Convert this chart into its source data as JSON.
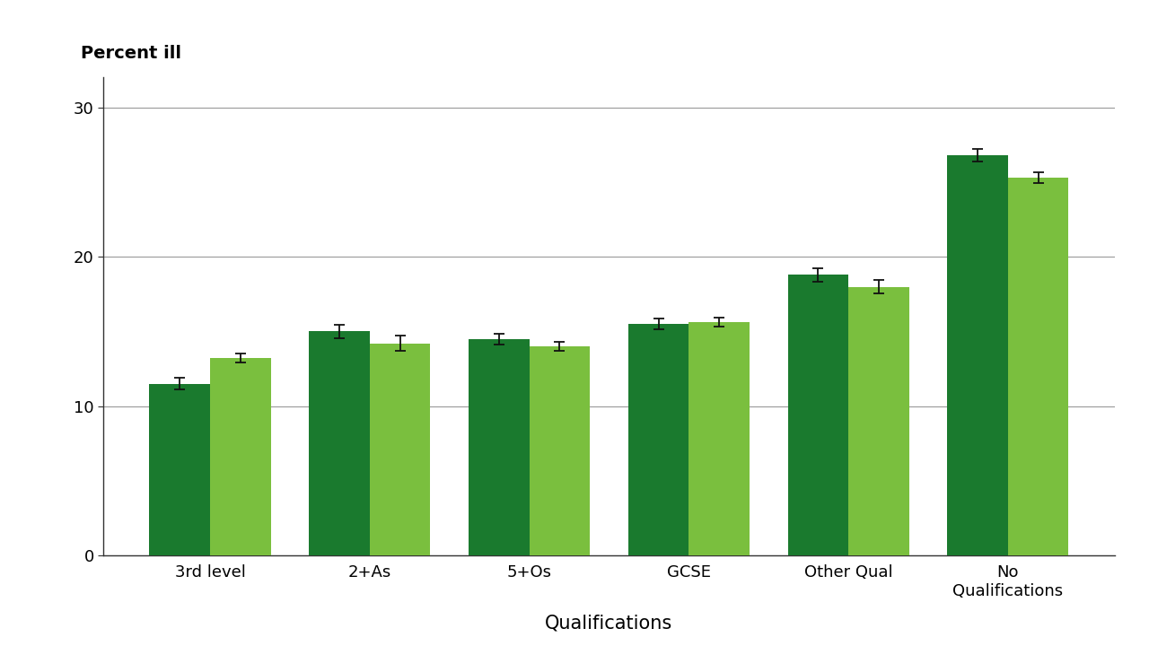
{
  "categories": [
    "3rd level",
    "2+As",
    "5+Os",
    "GCSE",
    "Other Qual",
    "No\nQualifications"
  ],
  "dark_green_values": [
    11.5,
    15.0,
    14.5,
    15.5,
    18.8,
    26.8
  ],
  "light_green_values": [
    13.2,
    14.2,
    14.0,
    15.6,
    18.0,
    25.3
  ],
  "dark_green_errors": [
    0.4,
    0.45,
    0.35,
    0.35,
    0.45,
    0.4
  ],
  "light_green_errors": [
    0.3,
    0.5,
    0.3,
    0.3,
    0.45,
    0.35
  ],
  "dark_green_color": "#1a7a2e",
  "light_green_color": "#7abf3e",
  "bar_width": 0.38,
  "ylabel": "Percent ill",
  "xlabel": "Qualifications",
  "ylim": [
    0,
    32
  ],
  "yticks": [
    0,
    10,
    20,
    30
  ],
  "background_color": "#ffffff",
  "error_color": "#111111",
  "label_fontsize": 14,
  "xlabel_fontsize": 15,
  "tick_fontsize": 13,
  "grid_color": "#999999",
  "spine_color": "#333333"
}
